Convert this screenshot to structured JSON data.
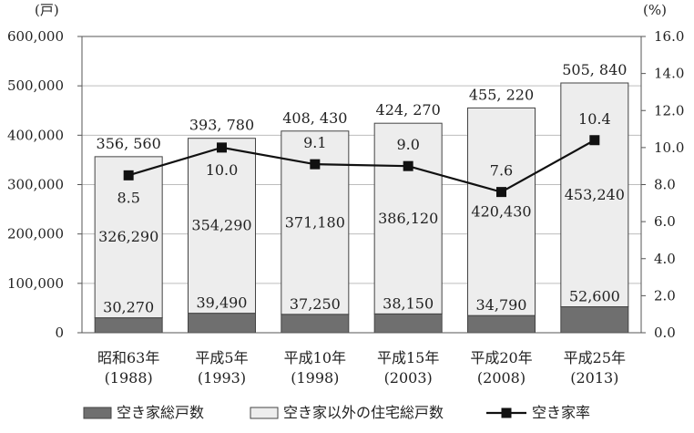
{
  "chart_data": {
    "type": "bar",
    "stacked": true,
    "categories": [
      [
        "昭和63年",
        "(1988)"
      ],
      [
        "平成5年",
        "(1993)"
      ],
      [
        "平成10年",
        "(1998)"
      ],
      [
        "平成15年",
        "(2003)"
      ],
      [
        "平成20年",
        "(2008)"
      ],
      [
        "平成25年",
        "(2013)"
      ]
    ],
    "left_unit": "(戸)",
    "right_unit": "(%)",
    "ylim": [
      0,
      600000
    ],
    "y2lim": [
      0,
      16
    ],
    "yticks": [
      "0",
      "100,000",
      "200,000",
      "300,000",
      "400,000",
      "500,000",
      "600,000"
    ],
    "y2ticks": [
      "0.0",
      "2.0",
      "4.0",
      "6.0",
      "8.0",
      "10.0",
      "12.0",
      "14.0",
      "16.0"
    ],
    "series": [
      {
        "name": "空き家総戸数",
        "values": [
          30270,
          39490,
          37250,
          38150,
          34790,
          52600
        ],
        "labels": [
          "30,270",
          "39,490",
          "37,250",
          "38,150",
          "34,790",
          "52,600"
        ],
        "color": "#6f6f6f"
      },
      {
        "name": "空き家以外の住宅総戸数",
        "values": [
          326290,
          354290,
          371180,
          386120,
          420430,
          453240
        ],
        "labels": [
          "326,290",
          "354,290",
          "371,180",
          "386,120",
          "420,430",
          "453,240"
        ],
        "color": "#ededed"
      }
    ],
    "totals": [
      "356, 560",
      "393, 780",
      "408, 430",
      "424, 270",
      "455, 220",
      "505, 840"
    ],
    "line": {
      "name": "空き家率",
      "axis": "right",
      "values": [
        8.5,
        10.0,
        9.1,
        9.0,
        7.6,
        10.4
      ],
      "labels": [
        "8.5",
        "10.0",
        "9.1",
        "9.0",
        "7.6",
        "10.4"
      ],
      "color": "#111111"
    },
    "legend": "bottom"
  }
}
